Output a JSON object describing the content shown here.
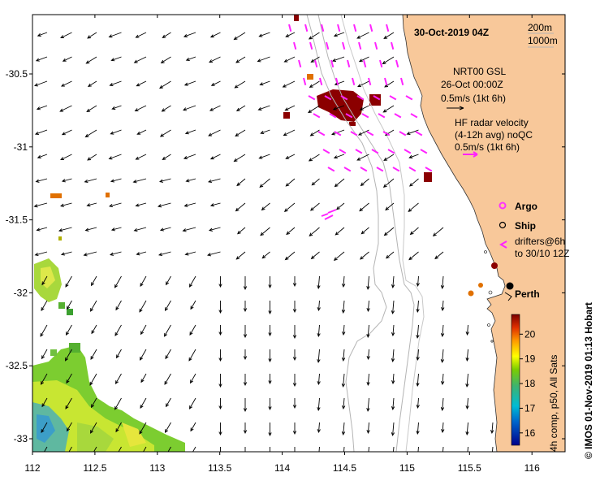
{
  "map": {
    "date_label": "30-Oct-2019 04Z",
    "credit": "© IMOS 01-Nov-2019 01:13 Hobart",
    "colorbar_caption": "4h comp, p50, All Sats",
    "x_ticks": [
      "112",
      "112.5",
      "113",
      "113.5",
      "114",
      "114.5",
      "115",
      "115.5",
      "116"
    ],
    "y_ticks": [
      "-30.5",
      "-31",
      "-31.5",
      "-32",
      "-32.5",
      "-33"
    ],
    "colorbar_ticks": [
      "20",
      "19",
      "18",
      "17",
      "16"
    ],
    "colorbar_range": [
      15.5,
      20.8
    ]
  },
  "legend": {
    "depth_200": "200m",
    "depth_1000": "1000m",
    "nrt_line1": "NRT00 GSL",
    "nrt_line2": "26-Oct 00:00Z",
    "nrt_scale": "0.5m/s (1kt 6h)",
    "hf_line1": "HF radar velocity",
    "hf_line2": "(4-12h avg) noQC",
    "hf_scale": "0.5m/s (1kt 6h)",
    "argo": "Argo",
    "ship": "Ship",
    "drifters_line1": "drifters@6h",
    "drifters_line2": "to 30/10 12Z",
    "city": "Perth"
  },
  "colors": {
    "land": "#f8c89a",
    "argo": "#ff33ff",
    "hf_arrow": "#ff22ff",
    "isobath": "#b4b4b4",
    "warm_patch": "#8b0000"
  }
}
